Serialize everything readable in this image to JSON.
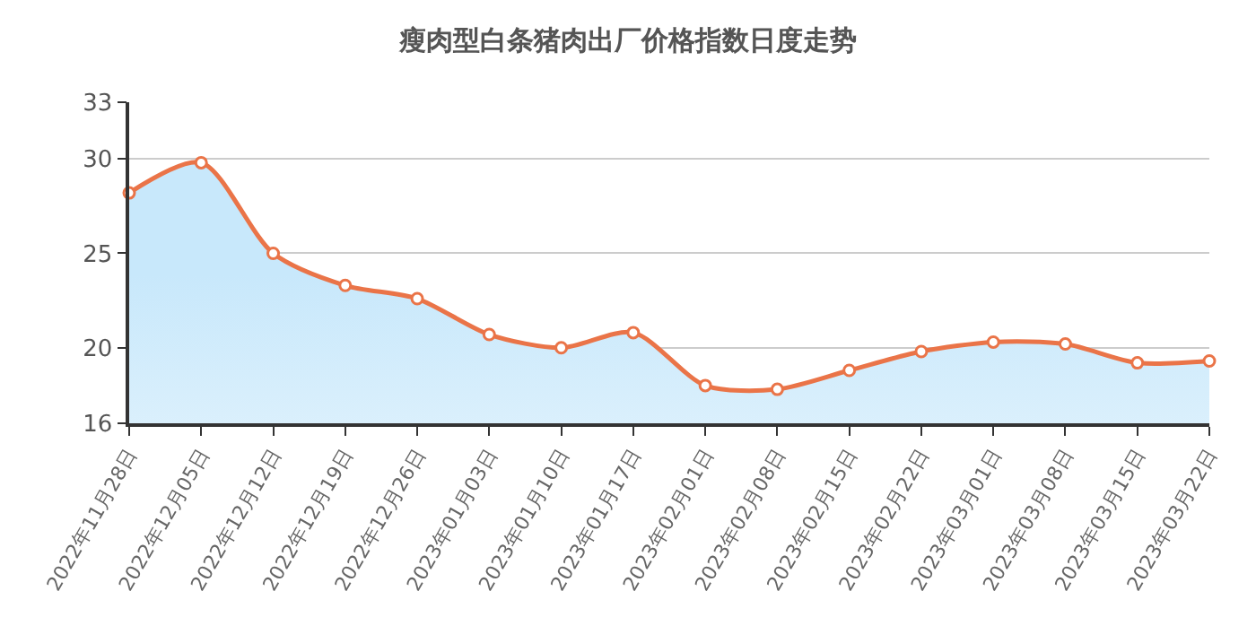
{
  "chart_data": {
    "type": "area",
    "title": "瘦肉型白条猪肉出厂价格指数日度走势",
    "categories": [
      "2022年11月28日",
      "2022年12月05日",
      "2022年12月12日",
      "2022年12月19日",
      "2022年12月26日",
      "2023年01月03日",
      "2023年01月10日",
      "2023年01月17日",
      "2023年02月01日",
      "2023年02月08日",
      "2023年02月15日",
      "2023年02月22日",
      "2023年03月01日",
      "2023年03月08日",
      "2023年03月15日",
      "2023年03月22日"
    ],
    "series": [
      {
        "color": "#ea7448",
        "values": [
          28.2,
          29.8,
          25.0,
          23.3,
          22.6,
          20.7,
          20.0,
          20.8,
          18.0,
          17.8,
          18.8,
          19.8,
          20.3,
          20.2,
          19.2,
          19.3
        ]
      }
    ],
    "ylim": [
      16,
      33
    ],
    "yticks": [
      16,
      20,
      25,
      30,
      33
    ],
    "grid": "y",
    "marker": "circle"
  }
}
